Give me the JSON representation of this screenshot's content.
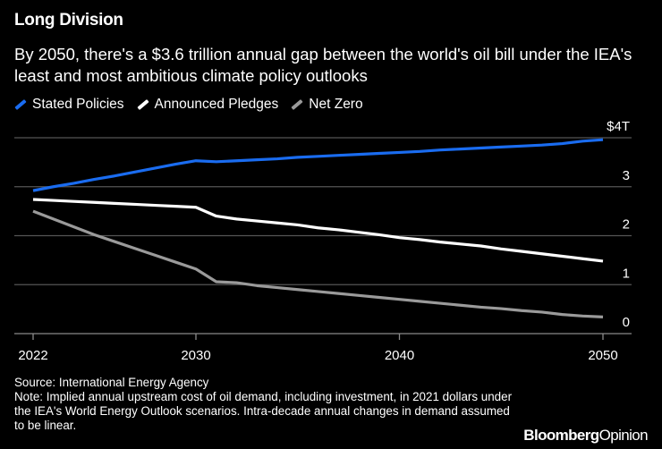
{
  "chart_data": {
    "type": "line",
    "title": "Long Division",
    "subtitle": "By 2050, there's a $3.6 trillion annual gap between the world's oil bill under the IEA's least and most ambitious climate policy outlooks",
    "x": [
      2022,
      2023,
      2024,
      2025,
      2026,
      2027,
      2028,
      2029,
      2030,
      2031,
      2032,
      2033,
      2034,
      2035,
      2036,
      2037,
      2038,
      2039,
      2040,
      2041,
      2042,
      2043,
      2044,
      2045,
      2046,
      2047,
      2048,
      2049,
      2050
    ],
    "series": [
      {
        "name": "Stated Policies",
        "color": "#1a6cf0",
        "values": [
          2.92,
          3.0,
          3.07,
          3.15,
          3.22,
          3.3,
          3.38,
          3.46,
          3.53,
          3.51,
          3.53,
          3.55,
          3.57,
          3.6,
          3.62,
          3.64,
          3.66,
          3.68,
          3.7,
          3.72,
          3.75,
          3.77,
          3.79,
          3.81,
          3.83,
          3.85,
          3.88,
          3.93,
          3.96
        ]
      },
      {
        "name": "Announced Pledges",
        "color": "#ffffff",
        "values": [
          2.74,
          2.72,
          2.7,
          2.68,
          2.66,
          2.64,
          2.62,
          2.6,
          2.58,
          2.4,
          2.34,
          2.3,
          2.26,
          2.22,
          2.16,
          2.12,
          2.07,
          2.02,
          1.96,
          1.92,
          1.87,
          1.83,
          1.79,
          1.73,
          1.68,
          1.63,
          1.58,
          1.53,
          1.48
        ]
      },
      {
        "name": "Net Zero",
        "color": "#9a9a9a",
        "values": [
          2.5,
          2.34,
          2.18,
          2.02,
          1.88,
          1.74,
          1.6,
          1.46,
          1.32,
          1.06,
          1.04,
          0.98,
          0.94,
          0.9,
          0.86,
          0.82,
          0.78,
          0.74,
          0.7,
          0.66,
          0.62,
          0.58,
          0.54,
          0.51,
          0.47,
          0.44,
          0.39,
          0.36,
          0.34
        ]
      }
    ],
    "x_ticks": [
      2022,
      2030,
      2040,
      2050
    ],
    "x_tick_labels": [
      "2022",
      "2030",
      "2040",
      "2050"
    ],
    "y_ticks": [
      0,
      1,
      2,
      3,
      4
    ],
    "y_tick_labels": [
      "0",
      "1",
      "2",
      "3",
      "$4T"
    ],
    "ylim": [
      0,
      4
    ],
    "xlim": [
      2022,
      2050
    ],
    "grid": true,
    "legend_position": "top-left",
    "xlabel": "",
    "ylabel": ""
  },
  "footer": {
    "source": "Source: International Energy Agency",
    "note": "Note: Implied annual upstream cost of oil demand, including investment, in 2021 dollars under the IEA's World Energy Outlook scenarios. Intra-decade annual changes in demand assumed to be linear."
  },
  "logo": {
    "part1": "Bloomberg",
    "part2": "Opinion"
  }
}
